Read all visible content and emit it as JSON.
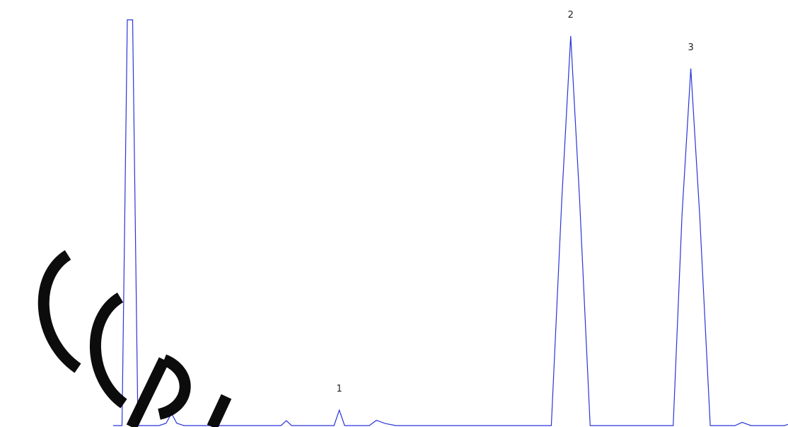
{
  "chart_data": {
    "type": "line",
    "title": "",
    "xlabel": "",
    "ylabel": "",
    "grid": false,
    "legend": "none",
    "series": [
      {
        "color": "#2a35d8",
        "points": [
          [
            0.0,
            0.0
          ],
          [
            0.5,
            0.0
          ],
          [
            0.8,
            100.0
          ],
          [
            1.1,
            100.0
          ],
          [
            1.4,
            0.0
          ],
          [
            2.6,
            0.0
          ],
          [
            3.0,
            0.6
          ],
          [
            3.3,
            3.0
          ],
          [
            3.6,
            0.6
          ],
          [
            4.0,
            0.0
          ],
          [
            9.5,
            0.0
          ],
          [
            9.8,
            1.2
          ],
          [
            10.1,
            0.0
          ],
          [
            12.5,
            0.0
          ],
          [
            12.8,
            3.8
          ],
          [
            13.1,
            0.0
          ],
          [
            14.5,
            0.0
          ],
          [
            14.9,
            1.3
          ],
          [
            15.4,
            0.5
          ],
          [
            16.0,
            0.0
          ],
          [
            24.8,
            0.0
          ],
          [
            25.4,
            56.0
          ],
          [
            25.9,
            96.0
          ],
          [
            26.4,
            56.0
          ],
          [
            27.0,
            0.0
          ],
          [
            31.7,
            0.0
          ],
          [
            32.2,
            52.0
          ],
          [
            32.7,
            88.0
          ],
          [
            33.2,
            52.0
          ],
          [
            33.8,
            0.0
          ],
          [
            35.2,
            0.0
          ],
          [
            35.6,
            0.8
          ],
          [
            36.1,
            0.0
          ],
          [
            38.0,
            0.0
          ],
          [
            38.2,
            0.3
          ]
        ]
      }
    ],
    "peaks": [
      {
        "label": "1",
        "x": 12.8
      },
      {
        "label": "2",
        "x": 25.9
      },
      {
        "label": "3",
        "x": 32.7
      }
    ],
    "watermark": "CCPL"
  }
}
